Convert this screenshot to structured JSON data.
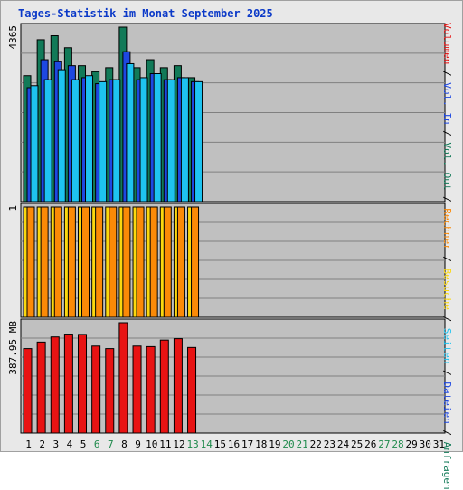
{
  "chart_data": {
    "type": "bar",
    "title": "Tages-Statistik im Monat September 2025",
    "categories": [
      "1",
      "2",
      "3",
      "4",
      "5",
      "6",
      "7",
      "8",
      "9",
      "10",
      "11",
      "12",
      "13",
      "14",
      "15",
      "16",
      "17",
      "18",
      "19",
      "20",
      "21",
      "22",
      "23",
      "24",
      "25",
      "26",
      "27",
      "28",
      "29",
      "30",
      "31"
    ],
    "weekend_days": [
      "6",
      "7",
      "13",
      "14",
      "20",
      "21",
      "27",
      "28"
    ],
    "panels": [
      {
        "id": "hits",
        "scale_label": "4365",
        "ylim": [
          0,
          4365
        ],
        "series": [
          {
            "name": "Anfragen",
            "color": "#127a58",
            "values": [
              3150,
              4050,
              4150,
              3850,
              3400,
              3250,
              3350,
              4365,
              3350,
              3550,
              3350,
              3400,
              3100
            ]
          },
          {
            "name": "Dateien",
            "color": "#1e48e2",
            "values": [
              2850,
              3550,
              3500,
              3400,
              3100,
              2950,
              3050,
              3750,
              3050,
              3200,
              3050,
              3100,
              3000
            ]
          },
          {
            "name": "Seiten",
            "color": "#1ec3f0",
            "values": [
              2900,
              3050,
              3300,
              3050,
              3150,
              3000,
              3050,
              3450,
              3100,
              3200,
              3050,
              3100,
              3000
            ]
          }
        ]
      },
      {
        "id": "visits",
        "scale_label": "1",
        "ylim": [
          0,
          1
        ],
        "series": [
          {
            "name": "Besuche",
            "color": "#fbd80f",
            "values": [
              1,
              1,
              1,
              1,
              1,
              1,
              1,
              1,
              1,
              1,
              1,
              1,
              1
            ]
          },
          {
            "name": "Rechner",
            "color": "#fb8a07",
            "values": [
              1,
              1,
              1,
              1,
              1,
              1,
              1,
              1,
              1,
              1,
              1,
              1,
              1
            ]
          }
        ]
      },
      {
        "id": "volume",
        "scale_label": "387.95 MB",
        "ylim": [
          0,
          387.95
        ],
        "series": [
          {
            "name": "Volumen",
            "color": "#e81313",
            "values": [
              297,
              320,
              338,
              348,
              347,
              306,
              297,
              387.95,
              306,
              304,
              327,
              332,
              301
            ]
          }
        ]
      }
    ],
    "legend": [
      {
        "text": "Volumen",
        "color": "#e81313"
      },
      {
        "text": " / ",
        "color": "#000000"
      },
      {
        "text": "Vol. In",
        "color": "#1e48e2"
      },
      {
        "text": " / ",
        "color": "#000000"
      },
      {
        "text": "Vol. Out",
        "color": "#127a58"
      },
      {
        "text": " / ",
        "color": "#000000"
      },
      {
        "text": "Rechner",
        "color": "#fb8a07"
      },
      {
        "text": " / ",
        "color": "#000000"
      },
      {
        "text": "Besuche",
        "color": "#fbd80f"
      },
      {
        "text": " / ",
        "color": "#000000"
      },
      {
        "text": "Seiten",
        "color": "#1ec3f0"
      },
      {
        "text": " / ",
        "color": "#000000"
      },
      {
        "text": "Dateien",
        "color": "#1e48e2"
      },
      {
        "text": " / ",
        "color": "#000000"
      },
      {
        "text": "Anfragen",
        "color": "#127a58"
      }
    ],
    "weekday_color": "#000000",
    "weekend_color": "#1f8a4c",
    "panel_background": "#c0c0c0",
    "gridlines": true
  }
}
